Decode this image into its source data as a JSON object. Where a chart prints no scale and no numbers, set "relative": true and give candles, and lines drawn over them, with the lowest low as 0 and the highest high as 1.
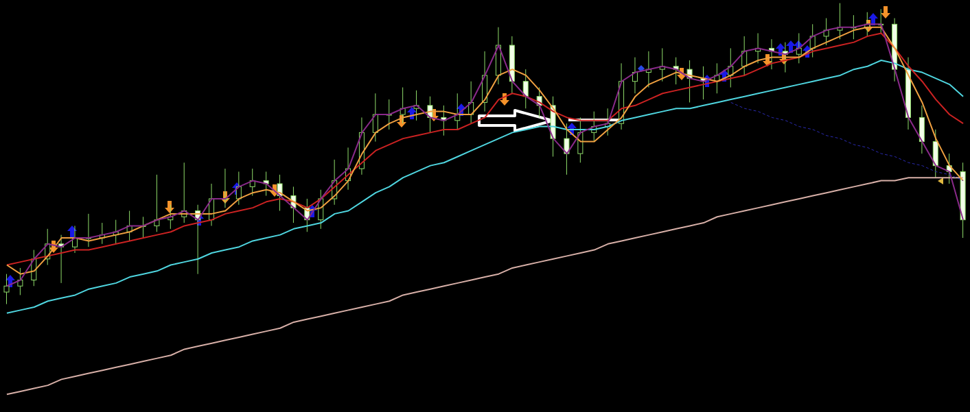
{
  "chart_data": {
    "type": "candlestick",
    "relative": true,
    "color": "#8fdc6a",
    "categories": [
      null,
      null,
      null,
      null,
      null,
      null,
      null,
      null,
      null,
      null,
      null,
      null,
      null,
      null,
      null,
      null,
      null,
      null,
      null,
      null,
      null,
      null,
      null,
      null,
      null,
      null,
      null,
      null,
      null,
      null,
      null,
      null,
      null,
      null,
      null,
      null,
      null,
      null,
      null,
      null,
      null,
      null,
      null,
      null,
      null,
      null,
      null,
      null,
      null,
      null,
      null,
      null,
      null,
      null,
      null,
      null,
      null,
      null,
      null,
      null,
      null,
      null,
      null,
      null,
      null,
      null,
      null,
      null,
      null,
      null,
      null
    ],
    "ohlc": [
      [
        0.04,
        0.1,
        0,
        0.06
      ],
      [
        0.06,
        0.12,
        0.03,
        0.08
      ],
      [
        0.08,
        0.18,
        0.06,
        0.15
      ],
      [
        0.15,
        0.25,
        0.13,
        0.2
      ],
      [
        0.2,
        0.23,
        0.07,
        0.19
      ],
      [
        0.19,
        0.26,
        0.17,
        0.22
      ],
      [
        0.22,
        0.3,
        0.19,
        0.22
      ],
      [
        0.22,
        0.27,
        0.2,
        0.23
      ],
      [
        0.23,
        0.28,
        0.2,
        0.24
      ],
      [
        0.24,
        0.31,
        0.21,
        0.26
      ],
      [
        0.26,
        0.29,
        0.22,
        0.26
      ],
      [
        0.26,
        0.43,
        0.24,
        0.28
      ],
      [
        0.28,
        0.33,
        0.25,
        0.29
      ],
      [
        0.29,
        0.47,
        0.27,
        0.31
      ],
      [
        0.31,
        0.33,
        0.1,
        0.28
      ],
      [
        0.28,
        0.4,
        0.26,
        0.35
      ],
      [
        0.35,
        0.45,
        0.32,
        0.35
      ],
      [
        0.35,
        0.44,
        0.33,
        0.39
      ],
      [
        0.39,
        0.45,
        0.36,
        0.41
      ],
      [
        0.41,
        0.44,
        0.36,
        0.4
      ],
      [
        0.4,
        0.43,
        0.31,
        0.36
      ],
      [
        0.36,
        0.39,
        0.27,
        0.32
      ],
      [
        0.32,
        0.35,
        0.24,
        0.28
      ],
      [
        0.28,
        0.38,
        0.25,
        0.35
      ],
      [
        0.35,
        0.48,
        0.33,
        0.41
      ],
      [
        0.41,
        0.52,
        0.38,
        0.45
      ],
      [
        0.45,
        0.62,
        0.43,
        0.57
      ],
      [
        0.57,
        0.7,
        0.54,
        0.63
      ],
      [
        0.63,
        0.68,
        0.58,
        0.63
      ],
      [
        0.63,
        0.72,
        0.6,
        0.65
      ],
      [
        0.65,
        0.71,
        0.61,
        0.66
      ],
      [
        0.66,
        0.69,
        0.57,
        0.62
      ],
      [
        0.62,
        0.66,
        0.56,
        0.61
      ],
      [
        0.61,
        0.7,
        0.58,
        0.63
      ],
      [
        0.63,
        0.74,
        0.6,
        0.67
      ],
      [
        0.67,
        0.84,
        0.64,
        0.76
      ],
      [
        0.76,
        0.92,
        0.73,
        0.86
      ],
      [
        0.86,
        0.89,
        0.7,
        0.74
      ],
      [
        0.74,
        0.78,
        0.65,
        0.69
      ],
      [
        0.69,
        0.72,
        0.62,
        0.66
      ],
      [
        0.66,
        0.69,
        0.49,
        0.55
      ],
      [
        0.55,
        0.6,
        0.43,
        0.5
      ],
      [
        0.5,
        0.62,
        0.47,
        0.57
      ],
      [
        0.57,
        0.64,
        0.54,
        0.59
      ],
      [
        0.59,
        0.65,
        0.56,
        0.6
      ],
      [
        0.6,
        0.8,
        0.58,
        0.74
      ],
      [
        0.74,
        0.82,
        0.7,
        0.77
      ],
      [
        0.77,
        0.84,
        0.72,
        0.78
      ],
      [
        0.78,
        0.85,
        0.74,
        0.79
      ],
      [
        0.79,
        0.82,
        0.73,
        0.78
      ],
      [
        0.78,
        0.81,
        0.67,
        0.75
      ],
      [
        0.75,
        0.79,
        0.68,
        0.74
      ],
      [
        0.74,
        0.8,
        0.7,
        0.76
      ],
      [
        0.76,
        0.85,
        0.72,
        0.79
      ],
      [
        0.79,
        0.89,
        0.76,
        0.84
      ],
      [
        0.84,
        0.9,
        0.8,
        0.85
      ],
      [
        0.85,
        0.88,
        0.78,
        0.84
      ],
      [
        0.84,
        0.87,
        0.77,
        0.83
      ],
      [
        0.83,
        0.9,
        0.8,
        0.85
      ],
      [
        0.85,
        0.93,
        0.82,
        0.89
      ],
      [
        0.89,
        0.95,
        0.86,
        0.91
      ],
      [
        0.91,
        1,
        0.88,
        0.92
      ],
      [
        0.92,
        0.96,
        0.88,
        0.92
      ],
      [
        0.92,
        0.97,
        0.89,
        0.93
      ],
      [
        0.93,
        0.98,
        0.9,
        0.93
      ],
      [
        0.93,
        0.95,
        0.74,
        0.78
      ],
      [
        0.78,
        0.82,
        0.58,
        0.62
      ],
      [
        0.62,
        0.66,
        0.5,
        0.54
      ],
      [
        0.54,
        0.58,
        0.42,
        0.46
      ],
      [
        0.46,
        0.5,
        0.4,
        0.44
      ],
      [
        0.44,
        0.47,
        0.22,
        0.28
      ]
    ],
    "series": [
      {
        "type": "line",
        "color": "#d8b0a8",
        "values": [
          -0.3,
          -0.29,
          -0.28,
          -0.27,
          -0.25,
          -0.24,
          -0.23,
          -0.22,
          -0.21,
          -0.2,
          -0.19,
          -0.18,
          -0.17,
          -0.15,
          -0.14,
          -0.13,
          -0.12,
          -0.11,
          -0.1,
          -0.09,
          -0.08,
          -0.06,
          -0.05,
          -0.04,
          -0.03,
          -0.02,
          -0.01,
          0.0,
          0.01,
          0.03,
          0.04,
          0.05,
          0.06,
          0.07,
          0.08,
          0.09,
          0.1,
          0.12,
          0.13,
          0.14,
          0.15,
          0.16,
          0.17,
          0.18,
          0.2,
          0.21,
          0.22,
          0.23,
          0.24,
          0.25,
          0.26,
          0.27,
          0.29,
          0.3,
          0.31,
          0.32,
          0.33,
          0.34,
          0.35,
          0.36,
          0.37,
          0.38,
          0.39,
          0.4,
          0.41,
          0.41,
          0.42,
          0.42,
          0.42,
          0.42,
          0.42
        ]
      },
      {
        "type": "line",
        "color": "#4fd6e0",
        "values": [
          -0.03,
          -0.02,
          -0.01,
          0.01,
          0.02,
          0.03,
          0.05,
          0.06,
          0.07,
          0.09,
          0.1,
          0.11,
          0.13,
          0.14,
          0.15,
          0.17,
          0.18,
          0.19,
          0.21,
          0.22,
          0.23,
          0.25,
          0.26,
          0.27,
          0.3,
          0.31,
          0.34,
          0.37,
          0.39,
          0.42,
          0.44,
          0.46,
          0.47,
          0.49,
          0.51,
          0.53,
          0.55,
          0.57,
          0.58,
          0.59,
          0.59,
          0.58,
          0.58,
          0.58,
          0.59,
          0.61,
          0.62,
          0.63,
          0.64,
          0.65,
          0.65,
          0.66,
          0.67,
          0.68,
          0.69,
          0.7,
          0.71,
          0.72,
          0.73,
          0.74,
          0.75,
          0.76,
          0.78,
          0.79,
          0.81,
          0.8,
          0.78,
          0.77,
          0.75,
          0.73,
          0.69
        ]
      },
      {
        "type": "line",
        "color": "#cc2222",
        "values": [
          0.13,
          0.14,
          0.15,
          0.16,
          0.17,
          0.18,
          0.18,
          0.19,
          0.2,
          0.21,
          0.22,
          0.23,
          0.24,
          0.26,
          0.27,
          0.28,
          0.3,
          0.31,
          0.32,
          0.34,
          0.35,
          0.34,
          0.32,
          0.35,
          0.39,
          0.43,
          0.47,
          0.51,
          0.53,
          0.55,
          0.56,
          0.57,
          0.58,
          0.58,
          0.6,
          0.62,
          0.68,
          0.7,
          0.69,
          0.67,
          0.64,
          0.62,
          0.61,
          0.61,
          0.61,
          0.65,
          0.66,
          0.68,
          0.7,
          0.71,
          0.72,
          0.73,
          0.74,
          0.75,
          0.76,
          0.78,
          0.8,
          0.81,
          0.82,
          0.84,
          0.85,
          0.86,
          0.87,
          0.89,
          0.9,
          0.85,
          0.79,
          0.74,
          0.68,
          0.63,
          0.6
        ]
      },
      {
        "type": "line",
        "color": "#f0a040",
        "values": [
          0.13,
          0.1,
          0.11,
          0.16,
          0.22,
          0.22,
          0.21,
          0.22,
          0.23,
          0.24,
          0.26,
          0.28,
          0.3,
          0.3,
          0.3,
          0.3,
          0.31,
          0.35,
          0.37,
          0.38,
          0.37,
          0.34,
          0.31,
          0.32,
          0.36,
          0.41,
          0.5,
          0.57,
          0.6,
          0.62,
          0.63,
          0.64,
          0.64,
          0.63,
          0.63,
          0.68,
          0.76,
          0.78,
          0.76,
          0.71,
          0.65,
          0.58,
          0.54,
          0.54,
          0.58,
          0.62,
          0.69,
          0.73,
          0.75,
          0.77,
          0.76,
          0.75,
          0.74,
          0.76,
          0.79,
          0.81,
          0.82,
          0.82,
          0.82,
          0.85,
          0.87,
          0.89,
          0.91,
          0.92,
          0.92,
          0.85,
          0.76,
          0.67,
          0.55,
          0.46,
          0.41
        ]
      },
      {
        "type": "line",
        "color": "#8a2a8a",
        "values": [
          0.06,
          0.08,
          0.15,
          0.2,
          0.19,
          0.22,
          0.22,
          0.23,
          0.24,
          0.26,
          0.26,
          0.28,
          0.29,
          0.31,
          0.28,
          0.35,
          0.35,
          0.39,
          0.41,
          0.4,
          0.36,
          0.32,
          0.28,
          0.35,
          0.41,
          0.45,
          0.57,
          0.63,
          0.63,
          0.65,
          0.66,
          0.62,
          0.61,
          0.63,
          0.67,
          0.76,
          0.86,
          0.74,
          0.69,
          0.66,
          0.55,
          0.5,
          0.57,
          0.59,
          0.6,
          0.74,
          0.77,
          0.78,
          0.79,
          0.78,
          0.75,
          0.74,
          0.76,
          0.79,
          0.84,
          0.85,
          0.84,
          0.83,
          0.85,
          0.89,
          0.91,
          0.92,
          0.92,
          0.93,
          0.93,
          0.78,
          0.62,
          0.54,
          0.46,
          0.44,
          0.28
        ]
      },
      {
        "type": "line",
        "color": "#2a2ab0",
        "line_style": "dashed",
        "values": [
          null,
          null,
          null,
          null,
          null,
          null,
          null,
          null,
          null,
          null,
          null,
          null,
          null,
          null,
          null,
          null,
          null,
          null,
          null,
          null,
          null,
          null,
          null,
          null,
          null,
          null,
          null,
          null,
          null,
          null,
          null,
          null,
          null,
          null,
          null,
          null,
          null,
          null,
          null,
          null,
          null,
          null,
          null,
          null,
          null,
          null,
          null,
          null,
          null,
          null,
          null,
          null,
          null,
          0.67,
          0.65,
          0.64,
          0.62,
          0.61,
          0.59,
          0.58,
          0.56,
          0.55,
          0.53,
          0.52,
          0.5,
          0.49,
          0.47,
          0.46,
          0.44,
          0.43,
          0.41
        ]
      }
    ]
  }
}
